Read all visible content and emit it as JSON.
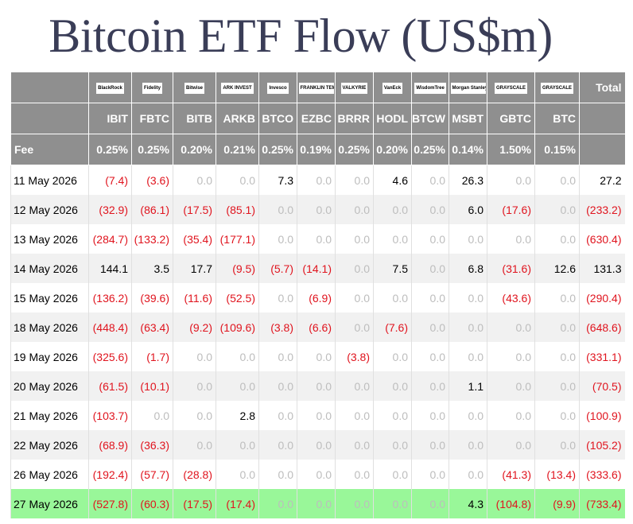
{
  "title": "Bitcoin ETF Flow (US$m)",
  "logos": [
    "BlackRock",
    "Fidelity",
    "Bitwise",
    "ARK INVEST",
    "Invesco",
    "FRANKLIN TEMPLETON",
    "VALKYRIE",
    "VanEck",
    "WisdomTree",
    "Morgan Stanley",
    "GRAYSCALE",
    "GRAYSCALE"
  ],
  "total_header": "Total",
  "tickers": [
    "IBIT",
    "FBTC",
    "BITB",
    "ARKB",
    "BTCO",
    "EZBC",
    "BRRR",
    "HODL",
    "BTCW",
    "MSBT",
    "GBTC",
    "BTC"
  ],
  "fee_label": "Fee",
  "fees": [
    "0.25%",
    "0.25%",
    "0.20%",
    "0.21%",
    "0.25%",
    "0.19%",
    "0.25%",
    "0.20%",
    "0.25%",
    "0.14%",
    "1.50%",
    "0.15%"
  ],
  "rows": [
    {
      "date": "11 May 2026",
      "values": [
        "(7.4)",
        "(3.6)",
        "0.0",
        "0.0",
        "7.3",
        "0.0",
        "0.0",
        "4.6",
        "0.0",
        "26.3",
        "0.0",
        "0.0"
      ],
      "total": "27.2"
    },
    {
      "date": "12 May 2026",
      "values": [
        "(32.9)",
        "(86.1)",
        "(17.5)",
        "(85.1)",
        "0.0",
        "0.0",
        "0.0",
        "0.0",
        "0.0",
        "6.0",
        "(17.6)",
        "0.0"
      ],
      "total": "(233.2)"
    },
    {
      "date": "13 May 2026",
      "values": [
        "(284.7)",
        "(133.2)",
        "(35.4)",
        "(177.1)",
        "0.0",
        "0.0",
        "0.0",
        "0.0",
        "0.0",
        "0.0",
        "0.0",
        "0.0"
      ],
      "total": "(630.4)"
    },
    {
      "date": "14 May 2026",
      "values": [
        "144.1",
        "3.5",
        "17.7",
        "(9.5)",
        "(5.7)",
        "(14.1)",
        "0.0",
        "7.5",
        "0.0",
        "6.8",
        "(31.6)",
        "12.6"
      ],
      "total": "131.3"
    },
    {
      "date": "15 May 2026",
      "values": [
        "(136.2)",
        "(39.6)",
        "(11.6)",
        "(52.5)",
        "0.0",
        "(6.9)",
        "0.0",
        "0.0",
        "0.0",
        "0.0",
        "(43.6)",
        "0.0"
      ],
      "total": "(290.4)"
    },
    {
      "date": "18 May 2026",
      "values": [
        "(448.4)",
        "(63.4)",
        "(9.2)",
        "(109.6)",
        "(3.8)",
        "(6.6)",
        "0.0",
        "(7.6)",
        "0.0",
        "0.0",
        "0.0",
        "0.0"
      ],
      "total": "(648.6)"
    },
    {
      "date": "19 May 2026",
      "values": [
        "(325.6)",
        "(1.7)",
        "0.0",
        "0.0",
        "0.0",
        "0.0",
        "(3.8)",
        "0.0",
        "0.0",
        "0.0",
        "0.0",
        "0.0"
      ],
      "total": "(331.1)"
    },
    {
      "date": "20 May 2026",
      "values": [
        "(61.5)",
        "(10.1)",
        "0.0",
        "0.0",
        "0.0",
        "0.0",
        "0.0",
        "0.0",
        "0.0",
        "1.1",
        "0.0",
        "0.0"
      ],
      "total": "(70.5)"
    },
    {
      "date": "21 May 2026",
      "values": [
        "(103.7)",
        "0.0",
        "0.0",
        "2.8",
        "0.0",
        "0.0",
        "0.0",
        "0.0",
        "0.0",
        "0.0",
        "0.0",
        "0.0"
      ],
      "total": "(100.9)"
    },
    {
      "date": "22 May 2026",
      "values": [
        "(68.9)",
        "(36.3)",
        "0.0",
        "0.0",
        "0.0",
        "0.0",
        "0.0",
        "0.0",
        "0.0",
        "0.0",
        "0.0",
        "0.0"
      ],
      "total": "(105.2)"
    },
    {
      "date": "26 May 2026",
      "values": [
        "(192.4)",
        "(57.7)",
        "(28.8)",
        "0.0",
        "0.0",
        "0.0",
        "0.0",
        "0.0",
        "0.0",
        "0.0",
        "(41.3)",
        "(13.4)"
      ],
      "total": "(333.6)"
    },
    {
      "date": "27 May 2026",
      "values": [
        "(527.8)",
        "(60.3)",
        "(17.5)",
        "(17.4)",
        "0.0",
        "0.0",
        "0.0",
        "0.0",
        "0.0",
        "4.3",
        "(104.8)",
        "(9.9)"
      ],
      "total": "(733.4)"
    }
  ],
  "colors": {
    "header_bg": "#8f8f8f",
    "negative": "#e0141e",
    "zero": "#bdbdbd",
    "highlight_row": "#99f799",
    "alt_row": "#f1f1f1",
    "title": "#3a3d57"
  }
}
